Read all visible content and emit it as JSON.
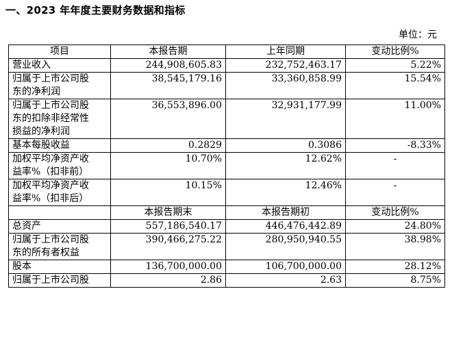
{
  "section_title": "一、2023 年年度主要财务数据和指标",
  "unit_label": "单位：元",
  "header1": [
    "项目",
    "本报告期",
    "上年同期",
    "变动比例%"
  ],
  "header2": [
    "",
    "本报告期末",
    "本报告期初",
    "变动比例%"
  ],
  "rows1": [
    {
      "label": [
        "营业收入"
      ],
      "v1": "244,908,605.83",
      "v2": "232,752,463.17",
      "v3": "5.22%"
    },
    {
      "label": [
        "归属于上市公司股",
        "东的净利润"
      ],
      "v1": "38,545,179.16",
      "v2": "33,360,858.99",
      "v3": "15.54%"
    },
    {
      "label": [
        "归属于上市公司股",
        "东的扣除非经常性",
        "损益的净利润"
      ],
      "v1": "36,553,896.00",
      "v2": "32,931,177.99",
      "v3": "11.00%"
    },
    {
      "label": [
        "基本每股收益"
      ],
      "v1": "0.2829",
      "v2": "0.3086",
      "v3": "-8.33%"
    },
    {
      "label": [
        "加权平均净资产收",
        "益率%（扣非前）"
      ],
      "v1": "10.70%",
      "v2": "12.62%",
      "v3": "-"
    },
    {
      "label": [
        "加权平均净资产收",
        "益率%（扣非后）"
      ],
      "v1": "10.15%",
      "v2": "12.46%",
      "v3": "-"
    }
  ],
  "rows2": [
    {
      "label": [
        "总资产"
      ],
      "v1": "557,186,540.17",
      "v2": "446,476,442.89",
      "v3": "24.80%"
    },
    {
      "label": [
        "归属于上市公司股",
        "东的所有者权益"
      ],
      "v1": "390,466,275.22",
      "v2": "280,950,940.55",
      "v3": "38.98%"
    },
    {
      "label": [
        "股本"
      ],
      "v1": "136,700,000.00",
      "v2": "106,700,000.00",
      "v3": "28.12%"
    },
    {
      "label": [
        "归属于上市公司股"
      ],
      "v1": "2.86",
      "v2": "2.63",
      "v3": "8.75%"
    }
  ]
}
